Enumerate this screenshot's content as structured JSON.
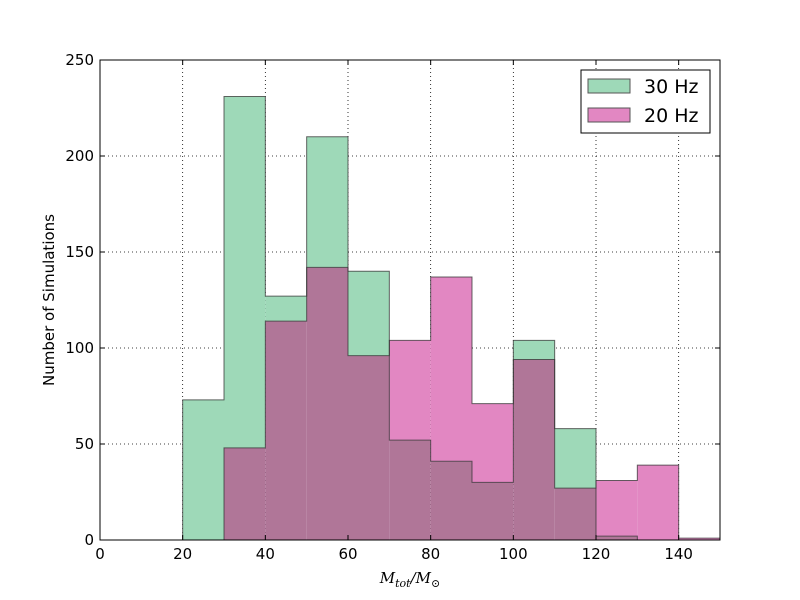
{
  "chart_data": {
    "type": "histogram",
    "xlabel": "M_tot/M_⊙",
    "ylabel": "Number of Simulations",
    "xlim": [
      0,
      150
    ],
    "ylim": [
      0,
      250
    ],
    "xticks": [
      "0",
      "20",
      "40",
      "60",
      "80",
      "100",
      "120",
      "140"
    ],
    "yticks": [
      "0",
      "50",
      "100",
      "150",
      "200",
      "250"
    ],
    "grid": true,
    "legend_position": "top-right",
    "bin_edges": [
      0,
      10,
      20,
      30,
      40,
      50,
      60,
      70,
      80,
      90,
      100,
      110,
      120,
      130,
      140,
      150
    ],
    "series": [
      {
        "name": "30 Hz",
        "color": "#9ed9b8",
        "values": [
          0,
          0,
          73,
          231,
          127,
          210,
          140,
          52,
          41,
          30,
          104,
          58,
          2,
          0,
          0
        ]
      },
      {
        "name": "20 Hz",
        "color": "#e287c2",
        "values": [
          0,
          0,
          0,
          48,
          114,
          142,
          96,
          104,
          137,
          71,
          94,
          27,
          31,
          39,
          1
        ]
      }
    ],
    "overlap_color": "#b07698"
  }
}
